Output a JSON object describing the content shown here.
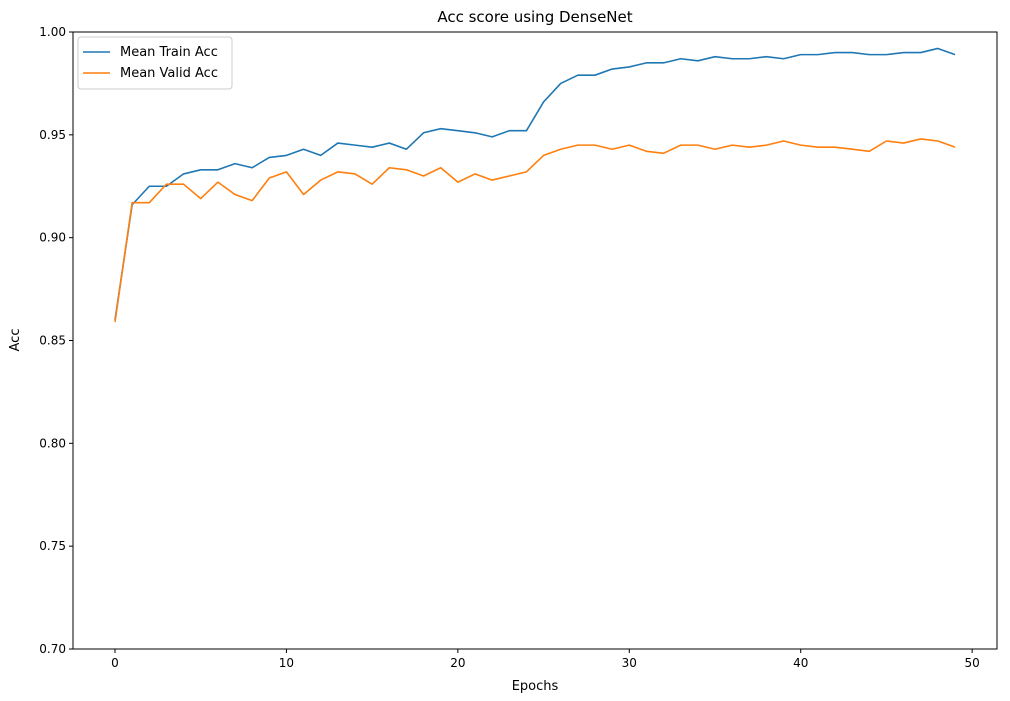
{
  "chart_data": {
    "type": "line",
    "title": "Acc score using DenseNet",
    "xlabel": "Epochs",
    "ylabel": "Acc",
    "xlim": [
      -2.45,
      51.45
    ],
    "ylim": [
      0.7,
      1.0
    ],
    "xticks": [
      0,
      10,
      20,
      30,
      40,
      50
    ],
    "yticks": [
      "0.70",
      "0.75",
      "0.80",
      "0.85",
      "0.90",
      "0.95",
      "1.00"
    ],
    "grid": false,
    "legend_position": "top-left",
    "x": [
      0,
      1,
      2,
      3,
      4,
      5,
      6,
      7,
      8,
      9,
      10,
      11,
      12,
      13,
      14,
      15,
      16,
      17,
      18,
      19,
      20,
      21,
      22,
      23,
      24,
      25,
      26,
      27,
      28,
      29,
      30,
      31,
      32,
      33,
      34,
      35,
      36,
      37,
      38,
      39,
      40,
      41,
      42,
      43,
      44,
      45,
      46,
      47,
      48,
      49
    ],
    "series": [
      {
        "name": "Mean Train Acc",
        "color": "#1f77b4",
        "values": [
          0.86,
          0.916,
          0.925,
          0.925,
          0.931,
          0.933,
          0.933,
          0.936,
          0.934,
          0.939,
          0.94,
          0.943,
          0.94,
          0.946,
          0.945,
          0.944,
          0.946,
          0.943,
          0.951,
          0.953,
          0.952,
          0.951,
          0.949,
          0.952,
          0.952,
          0.966,
          0.975,
          0.979,
          0.979,
          0.982,
          0.983,
          0.985,
          0.985,
          0.987,
          0.986,
          0.988,
          0.987,
          0.987,
          0.988,
          0.987,
          0.989,
          0.989,
          0.99,
          0.99,
          0.989,
          0.989,
          0.99,
          0.99,
          0.992,
          0.989
        ]
      },
      {
        "name": "Mean Valid Acc",
        "color": "#ff7f0e",
        "values": [
          0.859,
          0.917,
          0.917,
          0.926,
          0.926,
          0.919,
          0.927,
          0.921,
          0.918,
          0.929,
          0.932,
          0.921,
          0.928,
          0.932,
          0.931,
          0.926,
          0.934,
          0.933,
          0.93,
          0.934,
          0.927,
          0.931,
          0.928,
          0.93,
          0.932,
          0.94,
          0.943,
          0.945,
          0.945,
          0.943,
          0.945,
          0.942,
          0.941,
          0.945,
          0.945,
          0.943,
          0.945,
          0.944,
          0.945,
          0.947,
          0.945,
          0.944,
          0.944,
          0.943,
          0.942,
          0.947,
          0.946,
          0.948,
          0.947,
          0.944
        ]
      }
    ]
  }
}
